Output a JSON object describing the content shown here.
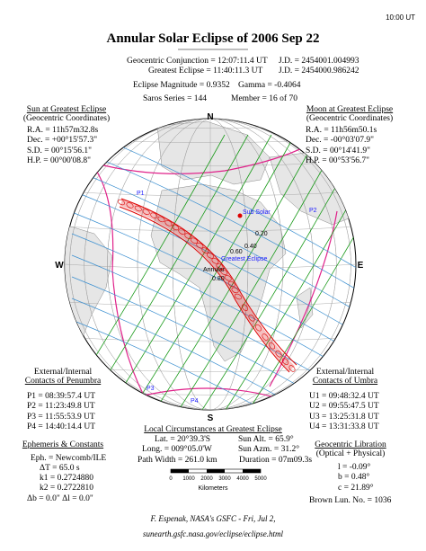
{
  "header": {
    "clock": "10:00 UT",
    "title": "Annular Solar Eclipse of  2006 Sep 22",
    "conjunction": "Geocentric Conjunction = 12:07:11.4 UT",
    "conjunction_jd": "J.D. = 2454001.004993",
    "greatest": "Greatest Eclipse = 11:40:11.3 UT",
    "greatest_jd": "J.D. = 2454000.986242",
    "magnitude": "Eclipse Magnitude = 0.9352",
    "gamma": "Gamma = -0.4064",
    "saros": "Saros Series = 144",
    "member": "Member = 16 of 70"
  },
  "sun": {
    "heading": "Sun at Greatest Eclipse",
    "subheading": "(Geocentric Coordinates)",
    "lines": [
      "R.A. = 11h57m32.8s",
      "Dec. = +00°15'57.3\"",
      "S.D. = 00°15'56.1\"",
      "H.P. = 00°00'08.8\""
    ]
  },
  "moon": {
    "heading": "Moon at Greatest Eclipse",
    "subheading": "(Geocentric Coordinates)",
    "lines": [
      "R.A. = 11h56m50.1s",
      "Dec. = -00°03'07.9\"",
      "S.D. = 00°14'41.9\"",
      "H.P. = 00°53'56.7\""
    ]
  },
  "map": {
    "north": "N",
    "south": "S",
    "east": "E",
    "west": "W",
    "sub_solar": "Sub Solar",
    "greatest_eclipse": "Greatest Eclipse",
    "annular": "Annular",
    "contacts": [
      "P1",
      "P2",
      "P3",
      "P4"
    ],
    "magnitudes": [
      "0.20",
      "0.40",
      "0.60",
      "0.80"
    ]
  },
  "penumbra": {
    "heading": "External/Internal",
    "subheading": "Contacts of Penumbra",
    "lines": [
      "P1 = 08:39:57.4 UT",
      "P2 = 11:23:49.8 UT",
      "P3 = 11:55:53.9 UT",
      "P4 = 14:40:14.4 UT"
    ]
  },
  "umbra": {
    "heading": "External/Internal",
    "subheading": "Contacts of Umbra",
    "lines": [
      "U1 = 09:48:32.4 UT",
      "U2 = 09:55:47.5 UT",
      "U3 = 13:25:31.8 UT",
      "U4 = 13:31:33.8 UT"
    ]
  },
  "local": {
    "heading": "Local Circumstances at Greatest Eclipse",
    "lat": "Lat. = 20°39.3'S",
    "sun_alt": "Sun Alt. = 65.9°",
    "long": "Long. = 009°05.0'W",
    "sun_azm": "Sun Azm. = 31.2°",
    "path_width": "Path Width = 261.0 km",
    "duration": "Duration = 07m09.3s"
  },
  "scale": {
    "ticks": [
      "0",
      "1000",
      "2000",
      "3000",
      "4000",
      "5000"
    ],
    "unit": "Kilometers"
  },
  "ephemeris": {
    "heading": "Ephemeris & Constants",
    "lines": [
      "Eph. = Newcomb/ILE",
      "ΔT = 65.0 s",
      "k1 = 0.2724880",
      "k2 = 0.2722810",
      "Δb = 0.0\"   Δl = 0.0\""
    ]
  },
  "libration": {
    "heading": "Geocentric Libration",
    "subheading": "(Optical + Physical)",
    "lines": [
      "l = -0.09°",
      "b = 0.48°",
      "c = 21.89°"
    ],
    "brown": "Brown Lun. No. = 1036"
  },
  "footer": {
    "credit": "F. Espenak, NASA's GSFC - Fri, Jul 2,",
    "url": "sunearth.gsfc.nasa.gov/eclipse/eclipse.html"
  }
}
